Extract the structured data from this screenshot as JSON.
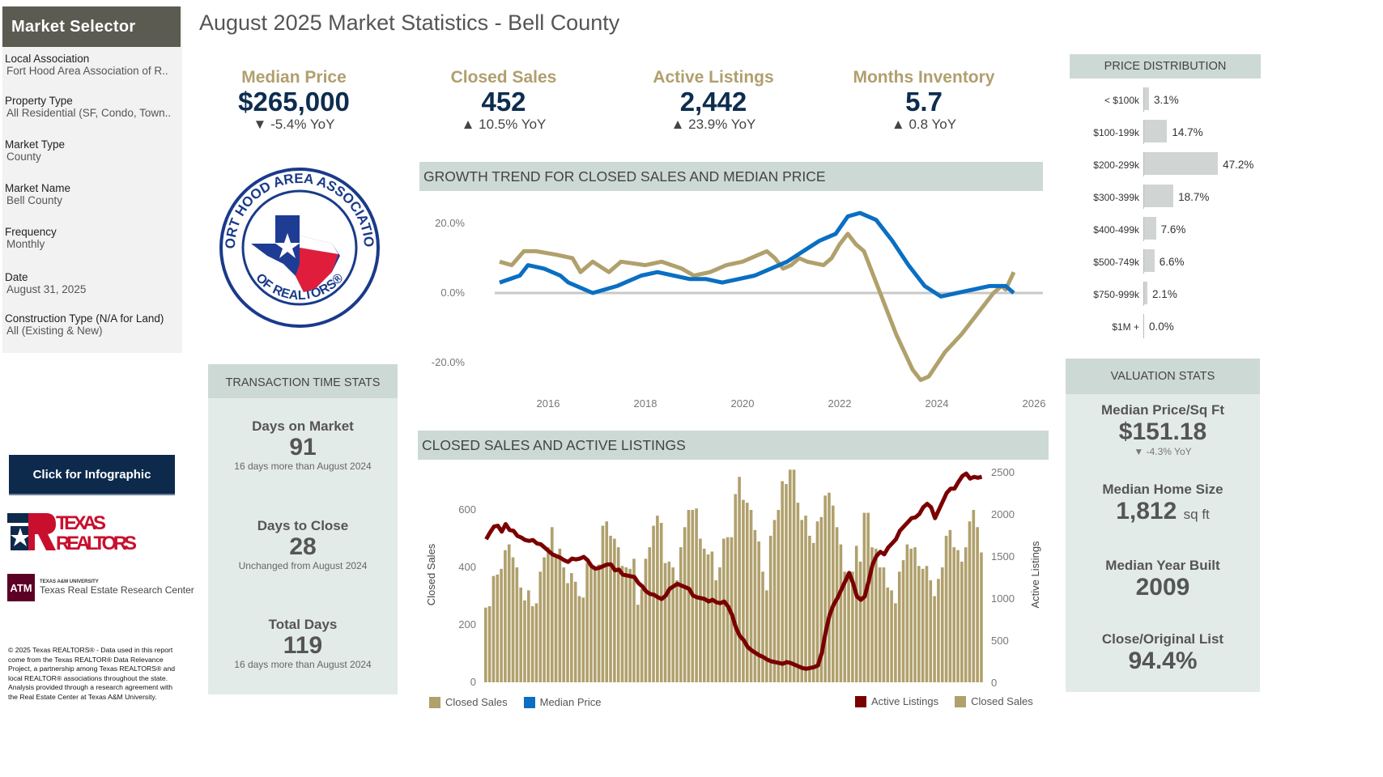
{
  "sidebar": {
    "header": "Market Selector",
    "filters": [
      {
        "label": "Local Association",
        "value": "Fort Hood Area Association of R.."
      },
      {
        "label": "Property Type",
        "value": "All Residential (SF, Condo, Town.."
      },
      {
        "label": "Market Type",
        "value": "County"
      },
      {
        "label": "Market Name",
        "value": "Bell County"
      },
      {
        "label": "Frequency",
        "value": "Monthly"
      },
      {
        "label": "Date",
        "value": "August 31, 2025"
      },
      {
        "label": "Construction Type (N/A for Land)",
        "value": "All (Existing & New)"
      }
    ],
    "infographic_button": "Click for Infographic",
    "logos": {
      "texas_realtors": "TEXAS REALTORS",
      "tamu_small": "TEXAS A&M UNIVERSITY",
      "tamu": "Texas Real Estate Research Center",
      "association": "FORT HOOD AREA ASSOCIATION OF REALTORS"
    },
    "copyright": "© 2025 Texas REALTORS® - Data used in this report come from the Texas REALTOR® Data Relevance Project, a partnership among Texas REALTORS® and local REALTOR® associations throughout the state. Analysis provided through a research agreement with the Real Estate Center at Texas A&M University."
  },
  "title": "August 2025 Market Statistics - Bell County",
  "kpis": [
    {
      "label": "Median Price",
      "value": "$265,000",
      "yoy": "▼ -5.4% YoY"
    },
    {
      "label": "Closed Sales",
      "value": "452",
      "yoy": "▲ 10.5% YoY"
    },
    {
      "label": "Active Listings",
      "value": "2,442",
      "yoy": "▲ 23.9% YoY"
    },
    {
      "label": "Months Inventory",
      "value": "5.7",
      "yoy": "▲ 0.8 YoY"
    }
  ],
  "transaction": {
    "header": "TRANSACTION TIME STATS",
    "stats": [
      {
        "label": "Days on Market",
        "value": "91",
        "sub": "16 days more than August 2024"
      },
      {
        "label": "Days to Close",
        "value": "28",
        "sub": "Unchanged from August 2024"
      },
      {
        "label": "Total Days",
        "value": "119",
        "sub": "16 days more than August 2024"
      }
    ]
  },
  "price_distribution": {
    "header": "PRICE DISTRIBUTION",
    "rows": [
      {
        "label": "< $100k",
        "pct": 3.1,
        "text": "3.1%"
      },
      {
        "label": "$100-199k",
        "pct": 14.7,
        "text": "14.7%"
      },
      {
        "label": "$200-299k",
        "pct": 47.2,
        "text": "47.2%"
      },
      {
        "label": "$300-399k",
        "pct": 18.7,
        "text": "18.7%"
      },
      {
        "label": "$400-499k",
        "pct": 7.6,
        "text": "7.6%"
      },
      {
        "label": "$500-749k",
        "pct": 6.6,
        "text": "6.6%"
      },
      {
        "label": "$750-999k",
        "pct": 2.1,
        "text": "2.1%"
      },
      {
        "label": "$1M +",
        "pct": 0.0,
        "text": "0.0%"
      }
    ]
  },
  "valuation": {
    "header": "VALUATION STATS",
    "stats": [
      {
        "label": "Median Price/Sq Ft",
        "value": "$151.18",
        "sub": "▼ -4.3% YoY"
      },
      {
        "label": "Median Home Size",
        "value": "1,812",
        "unit": "sq ft"
      },
      {
        "label": "Median Year Built",
        "value": "2009"
      },
      {
        "label": "Close/Original List",
        "value": "94.4%"
      }
    ]
  },
  "colors": {
    "gold": "#b0a06c",
    "blue": "#0a6fc2",
    "red": "#7a0000",
    "navy": "#0d2d4f"
  },
  "chart_data": [
    {
      "type": "line",
      "title": "GROWTH TREND FOR CLOSED SALES AND MEDIAN PRICE",
      "ylim": [
        -25,
        25
      ],
      "yticks": [
        "20.0%",
        "0.0%",
        "-20.0%"
      ],
      "ytick_values": [
        20,
        0,
        -20
      ],
      "xticks": [
        "2016",
        "2018",
        "2020",
        "2022",
        "2024",
        "2026"
      ],
      "xlim": [
        "2015-01",
        "2026-01"
      ],
      "legend": "bottom-left",
      "series": [
        {
          "name": "Closed Sales",
          "color": "#b0a06c",
          "points": [
            [
              "2015-01",
              9
            ],
            [
              "2015-04",
              8
            ],
            [
              "2015-07",
              12
            ],
            [
              "2015-10",
              12
            ],
            [
              "2016-03",
              11
            ],
            [
              "2016-07",
              10
            ],
            [
              "2016-09",
              6
            ],
            [
              "2016-12",
              9
            ],
            [
              "2017-04",
              6
            ],
            [
              "2017-07",
              9
            ],
            [
              "2018-01",
              8
            ],
            [
              "2018-05",
              9
            ],
            [
              "2018-10",
              7
            ],
            [
              "2019-01",
              5
            ],
            [
              "2019-05",
              6
            ],
            [
              "2019-09",
              8
            ],
            [
              "2020-01",
              9
            ],
            [
              "2020-05",
              11
            ],
            [
              "2020-07",
              12
            ],
            [
              "2020-09",
              10
            ],
            [
              "2020-11",
              7
            ],
            [
              "2021-01",
              8
            ],
            [
              "2021-03",
              10
            ],
            [
              "2021-05",
              9
            ],
            [
              "2021-09",
              8
            ],
            [
              "2021-11",
              10
            ],
            [
              "2022-01",
              14
            ],
            [
              "2022-03",
              17
            ],
            [
              "2022-05",
              14
            ],
            [
              "2022-07",
              12
            ],
            [
              "2022-11",
              0
            ],
            [
              "2023-03",
              -12
            ],
            [
              "2023-07",
              -22
            ],
            [
              "2023-09",
              -25
            ],
            [
              "2023-11",
              -24
            ],
            [
              "2024-03",
              -17
            ],
            [
              "2024-07",
              -12
            ],
            [
              "2024-11",
              -6
            ],
            [
              "2025-03",
              0
            ],
            [
              "2025-05",
              2
            ],
            [
              "2025-06",
              1
            ],
            [
              "2025-08",
              6
            ]
          ]
        },
        {
          "name": "Median Price",
          "color": "#0a6fc2",
          "points": [
            [
              "2015-01",
              3
            ],
            [
              "2015-06",
              5
            ],
            [
              "2015-08",
              8
            ],
            [
              "2015-12",
              7
            ],
            [
              "2016-04",
              5
            ],
            [
              "2016-06",
              3
            ],
            [
              "2016-12",
              0
            ],
            [
              "2017-06",
              2
            ],
            [
              "2017-12",
              5
            ],
            [
              "2018-04",
              6
            ],
            [
              "2018-08",
              5
            ],
            [
              "2018-12",
              4
            ],
            [
              "2019-04",
              4
            ],
            [
              "2019-08",
              3
            ],
            [
              "2019-12",
              4
            ],
            [
              "2020-04",
              5
            ],
            [
              "2020-08",
              7
            ],
            [
              "2020-12",
              9
            ],
            [
              "2021-04",
              12
            ],
            [
              "2021-08",
              15
            ],
            [
              "2021-12",
              17
            ],
            [
              "2022-03",
              22
            ],
            [
              "2022-06",
              23
            ],
            [
              "2022-10",
              21
            ],
            [
              "2023-02",
              15
            ],
            [
              "2023-06",
              8
            ],
            [
              "2023-10",
              2
            ],
            [
              "2024-02",
              -1
            ],
            [
              "2024-06",
              0
            ],
            [
              "2024-10",
              1
            ],
            [
              "2025-02",
              2
            ],
            [
              "2025-06",
              2
            ],
            [
              "2025-08",
              0
            ]
          ]
        }
      ]
    },
    {
      "type": "bar+line",
      "title": "CLOSED SALES AND ACTIVE LISTINGS",
      "ylabel": "Closed Sales",
      "y2label": "Active Listings",
      "ylim": [
        0,
        750
      ],
      "yticks": [
        0,
        200,
        400,
        600
      ],
      "y2lim": [
        0,
        2500
      ],
      "y2ticks": [
        0,
        500,
        1000,
        1500,
        2000,
        2500
      ],
      "start": "2015-01",
      "end": "2025-08",
      "legend": "bottom-right",
      "series": [
        {
          "name": "Closed Sales",
          "type": "bar",
          "color": "#b0a06c",
          "values": [
            260,
            265,
            370,
            375,
            395,
            460,
            480,
            435,
            400,
            330,
            285,
            320,
            265,
            275,
            385,
            435,
            470,
            540,
            445,
            465,
            400,
            345,
            380,
            350,
            300,
            295,
            415,
            405,
            395,
            410,
            545,
            560,
            510,
            500,
            470,
            405,
            400,
            395,
            430,
            270,
            325,
            430,
            470,
            545,
            580,
            555,
            415,
            420,
            400,
            355,
            470,
            540,
            600,
            600,
            605,
            500,
            465,
            445,
            455,
            355,
            400,
            500,
            505,
            505,
            655,
            715,
            635,
            625,
            600,
            530,
            490,
            385,
            320,
            510,
            565,
            600,
            700,
            690,
            740,
            740,
            625,
            565,
            580,
            510,
            485,
            560,
            575,
            650,
            660,
            615,
            540,
            480,
            385,
            370,
            385,
            475,
            420,
            590,
            590,
            470,
            465,
            400,
            400,
            330,
            320,
            275,
            385,
            425,
            480,
            465,
            470,
            405,
            395,
            405,
            355,
            300,
            360,
            400,
            510,
            530,
            470,
            460,
            420,
            470,
            560,
            600,
            540,
            452
          ]
        },
        {
          "name": "Active Listings",
          "type": "line",
          "color": "#7a0000",
          "values": [
            1700,
            1780,
            1850,
            1860,
            1790,
            1880,
            1810,
            1800,
            1740,
            1720,
            1690,
            1680,
            1690,
            1650,
            1640,
            1600,
            1560,
            1520,
            1500,
            1480,
            1450,
            1430,
            1470,
            1460,
            1470,
            1490,
            1450,
            1380,
            1350,
            1360,
            1380,
            1400,
            1400,
            1330,
            1340,
            1280,
            1270,
            1260,
            1250,
            1180,
            1140,
            1080,
            1050,
            1040,
            1010,
            990,
            1030,
            1110,
            1140,
            1170,
            1150,
            1130,
            1110,
            1030,
            1010,
            1000,
            990,
            960,
            980,
            950,
            940,
            960,
            900,
            800,
            650,
            550,
            500,
            420,
            380,
            350,
            320,
            300,
            270,
            250,
            240,
            230,
            220,
            240,
            230,
            210,
            190,
            170,
            160,
            170,
            180,
            200,
            350,
            600,
            800,
            920,
            1000,
            1100,
            1200,
            1300,
            1180,
            1020,
            980,
            1020,
            1200,
            1400,
            1500,
            1550,
            1520,
            1600,
            1650,
            1700,
            1800,
            1850,
            1900,
            1950,
            1960,
            2000,
            2080,
            2120,
            2080,
            1950,
            2050,
            2150,
            2250,
            2300,
            2300,
            2380,
            2450,
            2480,
            2420,
            2440,
            2430,
            2442
          ]
        }
      ]
    }
  ]
}
